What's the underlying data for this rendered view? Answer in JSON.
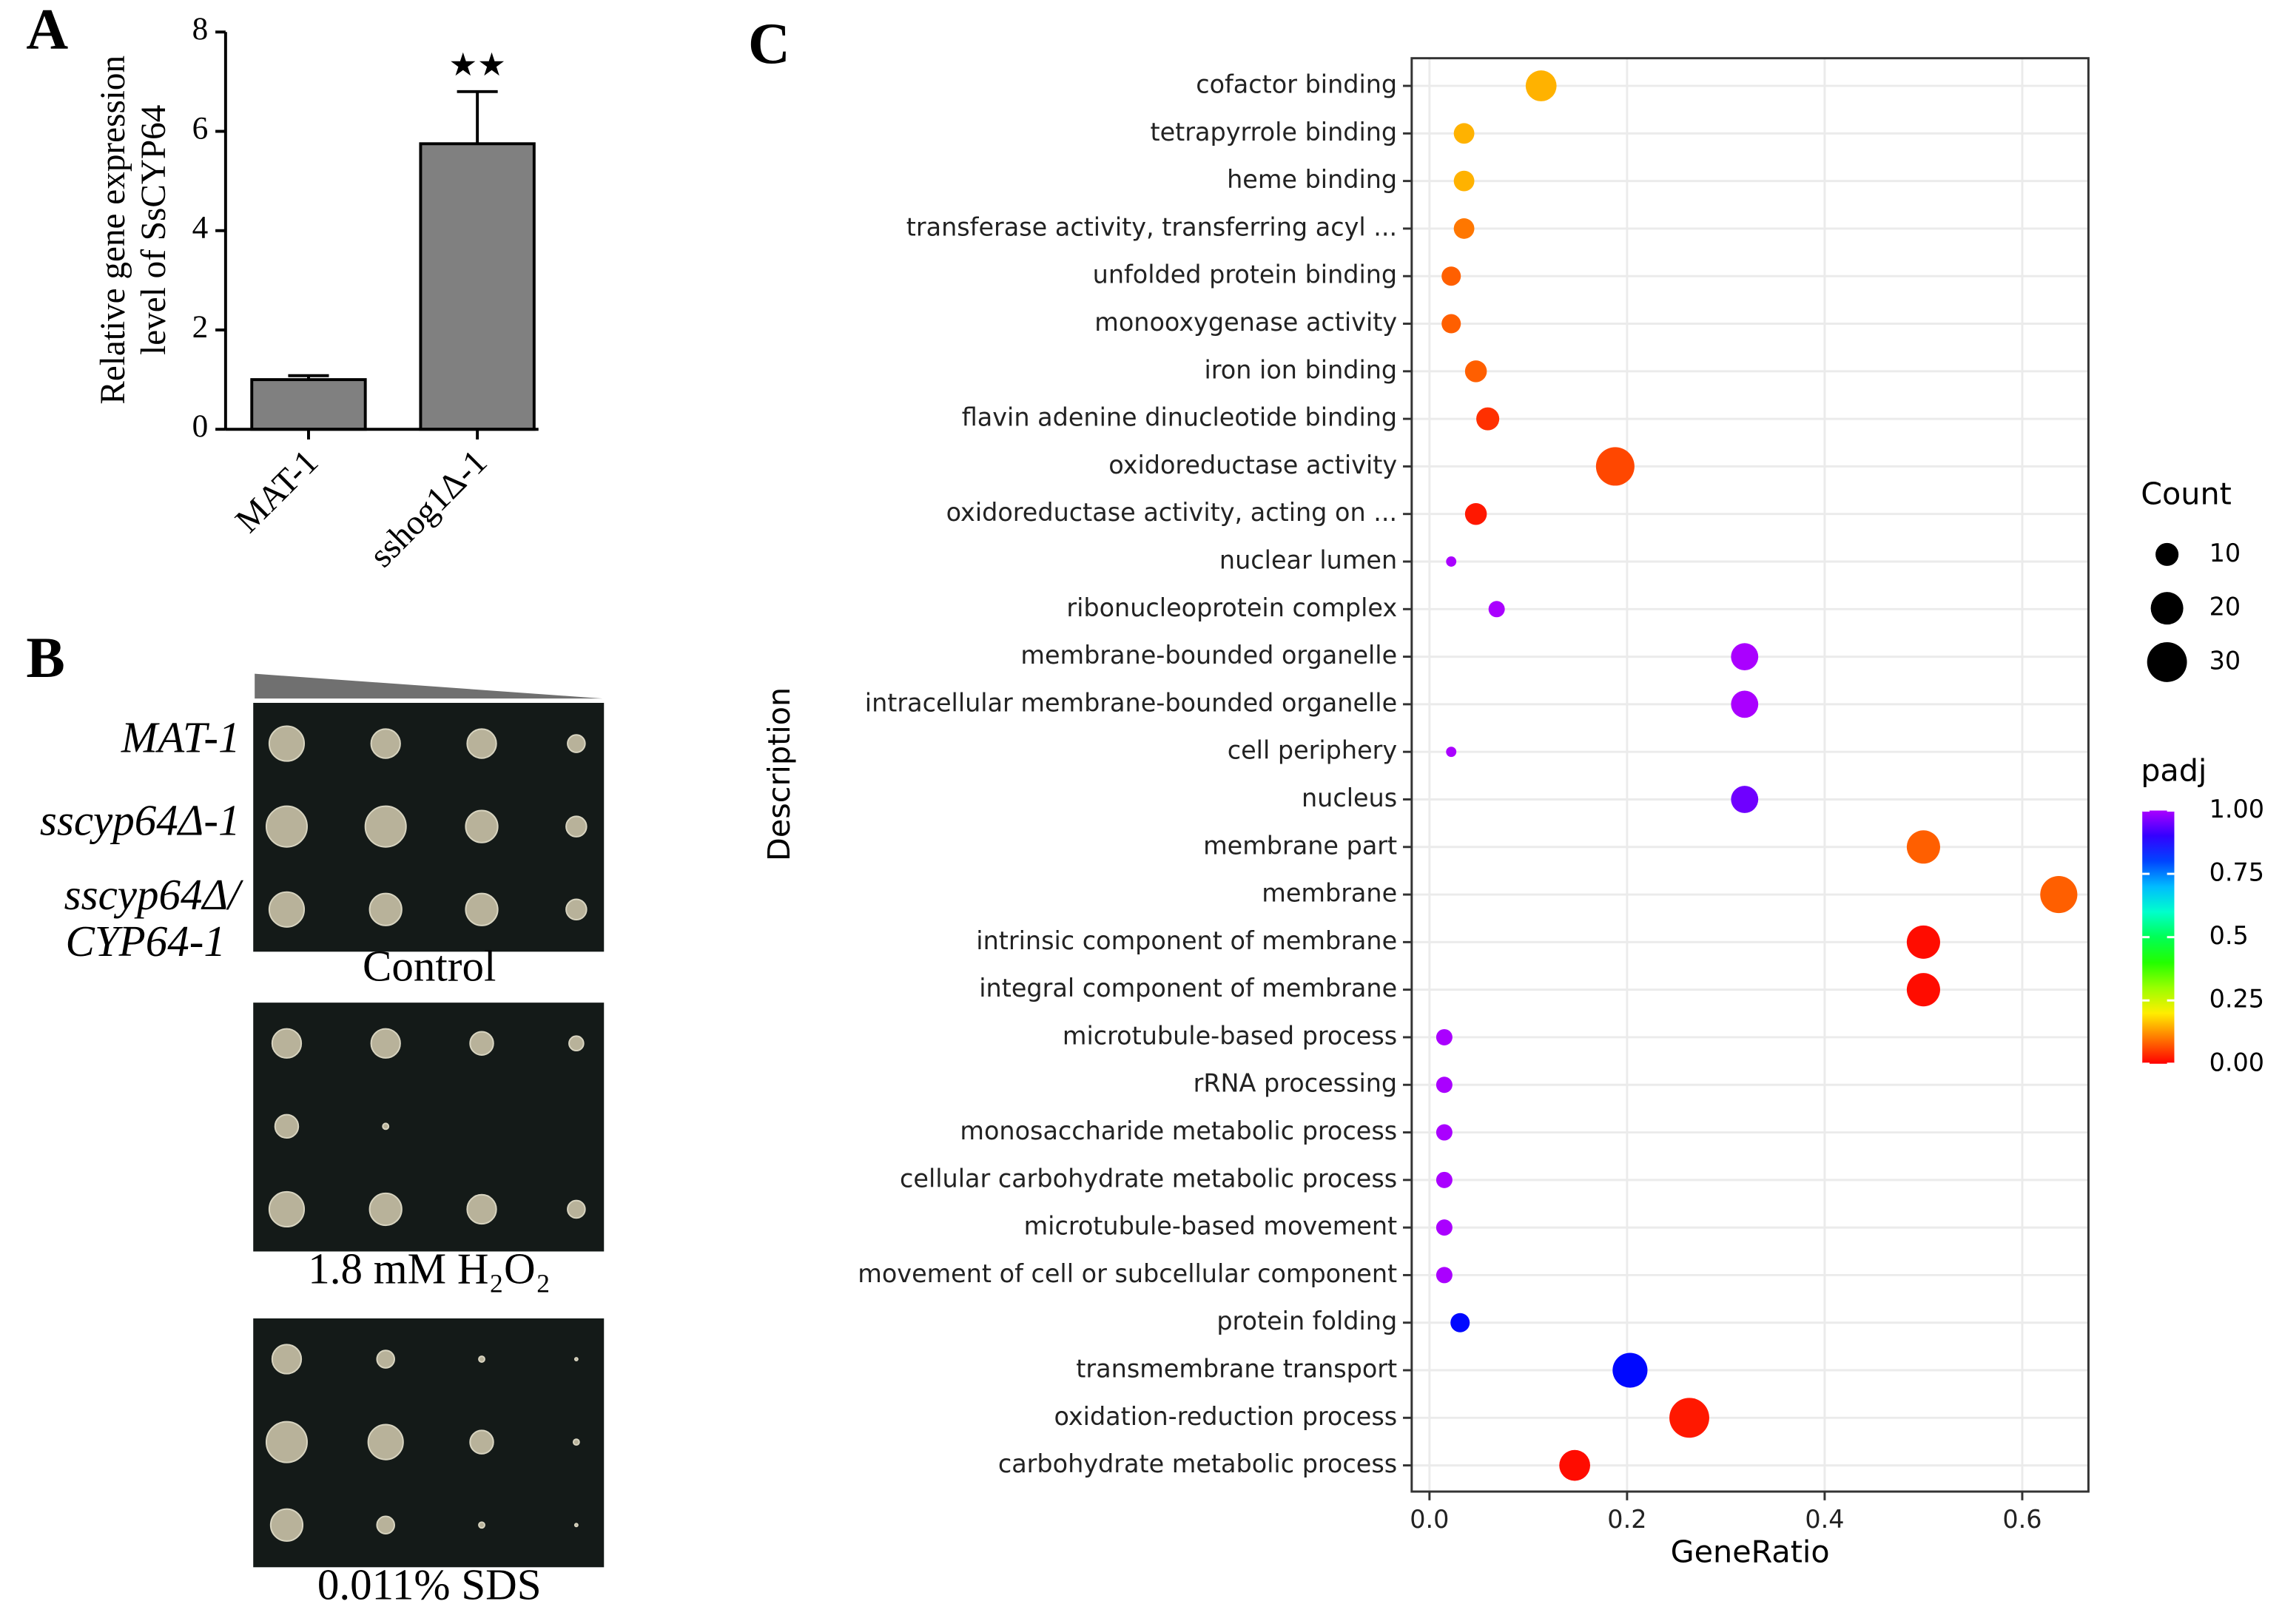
{
  "panel_labels": [
    "A",
    "B",
    "C"
  ],
  "panel_b": {
    "strains": [
      "MAT-1",
      "sscyp64Δ-1",
      "sscyp64Δ/",
      "CYP64-1"
    ],
    "conditions": [
      "Control",
      "1.8 mM H₂O₂",
      "0.011% SDS"
    ]
  },
  "chart_data": [
    {
      "type": "bar",
      "ylabel": [
        "Relative gene expression",
        "level of SsCYP64"
      ],
      "categories": [
        "MAT-1",
        "sshog1Δ-1"
      ],
      "values": [
        1.0,
        5.75
      ],
      "errors": [
        0.08,
        1.05
      ],
      "color": "#808080",
      "annotations": [
        {
          "category": 1,
          "text": "★★"
        }
      ],
      "ylim": [
        0,
        8
      ],
      "yticks": [
        0,
        2,
        4,
        6,
        8
      ]
    },
    {
      "type": "dot",
      "xlabel": "GeneRatio",
      "ylabel": "Description",
      "categories": [
        "cofactor binding",
        "tetrapyrrole binding",
        "heme binding",
        "transferase activity, transferring acyl ...",
        "unfolded protein binding",
        "monooxygenase activity",
        "iron ion binding",
        "flavin adenine dinucleotide binding",
        "oxidoreductase activity",
        "oxidoreductase activity, acting on ...",
        "nuclear lumen",
        "ribonucleoprotein complex",
        "membrane-bounded organelle",
        "intracellular membrane-bounded organelle",
        "cell periphery",
        "nucleus",
        "membrane part",
        "membrane",
        "intrinsic component of membrane",
        "integral component of membrane",
        "microtubule-based process",
        "rRNA processing",
        "monosaccharide metabolic process",
        "cellular carbohydrate metabolic process",
        "microtubule-based movement",
        "movement of cell or subcellular component",
        "protein folding",
        "transmembrane transport",
        "oxidation-reduction process",
        "carbohydrate metabolic process"
      ],
      "values": [
        0.113,
        0.035,
        0.035,
        0.035,
        0.022,
        0.022,
        0.047,
        0.059,
        0.188,
        0.047,
        0.022,
        0.068,
        0.319,
        0.319,
        0.022,
        0.319,
        0.5,
        0.637,
        0.5,
        0.5,
        0.015,
        0.015,
        0.015,
        0.015,
        0.015,
        0.015,
        0.031,
        0.203,
        0.263,
        0.147
      ],
      "counts": [
        18,
        8,
        8,
        8,
        7,
        7,
        9,
        10,
        28,
        9,
        2,
        5,
        14,
        14,
        2,
        14,
        21,
        26,
        21,
        21,
        5,
        5,
        5,
        5,
        5,
        5,
        7,
        23,
        30,
        18
      ],
      "padj": [
        0.15,
        0.15,
        0.15,
        0.1,
        0.08,
        0.08,
        0.08,
        0.04,
        0.06,
        0.02,
        1.0,
        1.0,
        1.0,
        1.0,
        1.0,
        0.95,
        0.08,
        0.08,
        0.01,
        0.01,
        1.0,
        1.0,
        1.0,
        1.0,
        1.0,
        1.0,
        0.85,
        0.85,
        0.02,
        0.01
      ],
      "xlim": [
        -0.018,
        0.667
      ],
      "xticks": [
        {
          "value": 0,
          "label": "0.0"
        },
        0.2,
        0.4,
        0.6
      ],
      "grid": true,
      "colormap": "rainbow",
      "size_legend": {
        "title": "Count",
        "values": [
          10,
          20,
          30
        ]
      },
      "colorbar": {
        "title": "padj",
        "lim": [
          0,
          1
        ],
        "ticks": [
          {
            "value": 1,
            "label": "1.00"
          },
          0.75,
          0.5,
          0.25,
          {
            "value": 0,
            "label": "0.00"
          }
        ]
      }
    }
  ]
}
